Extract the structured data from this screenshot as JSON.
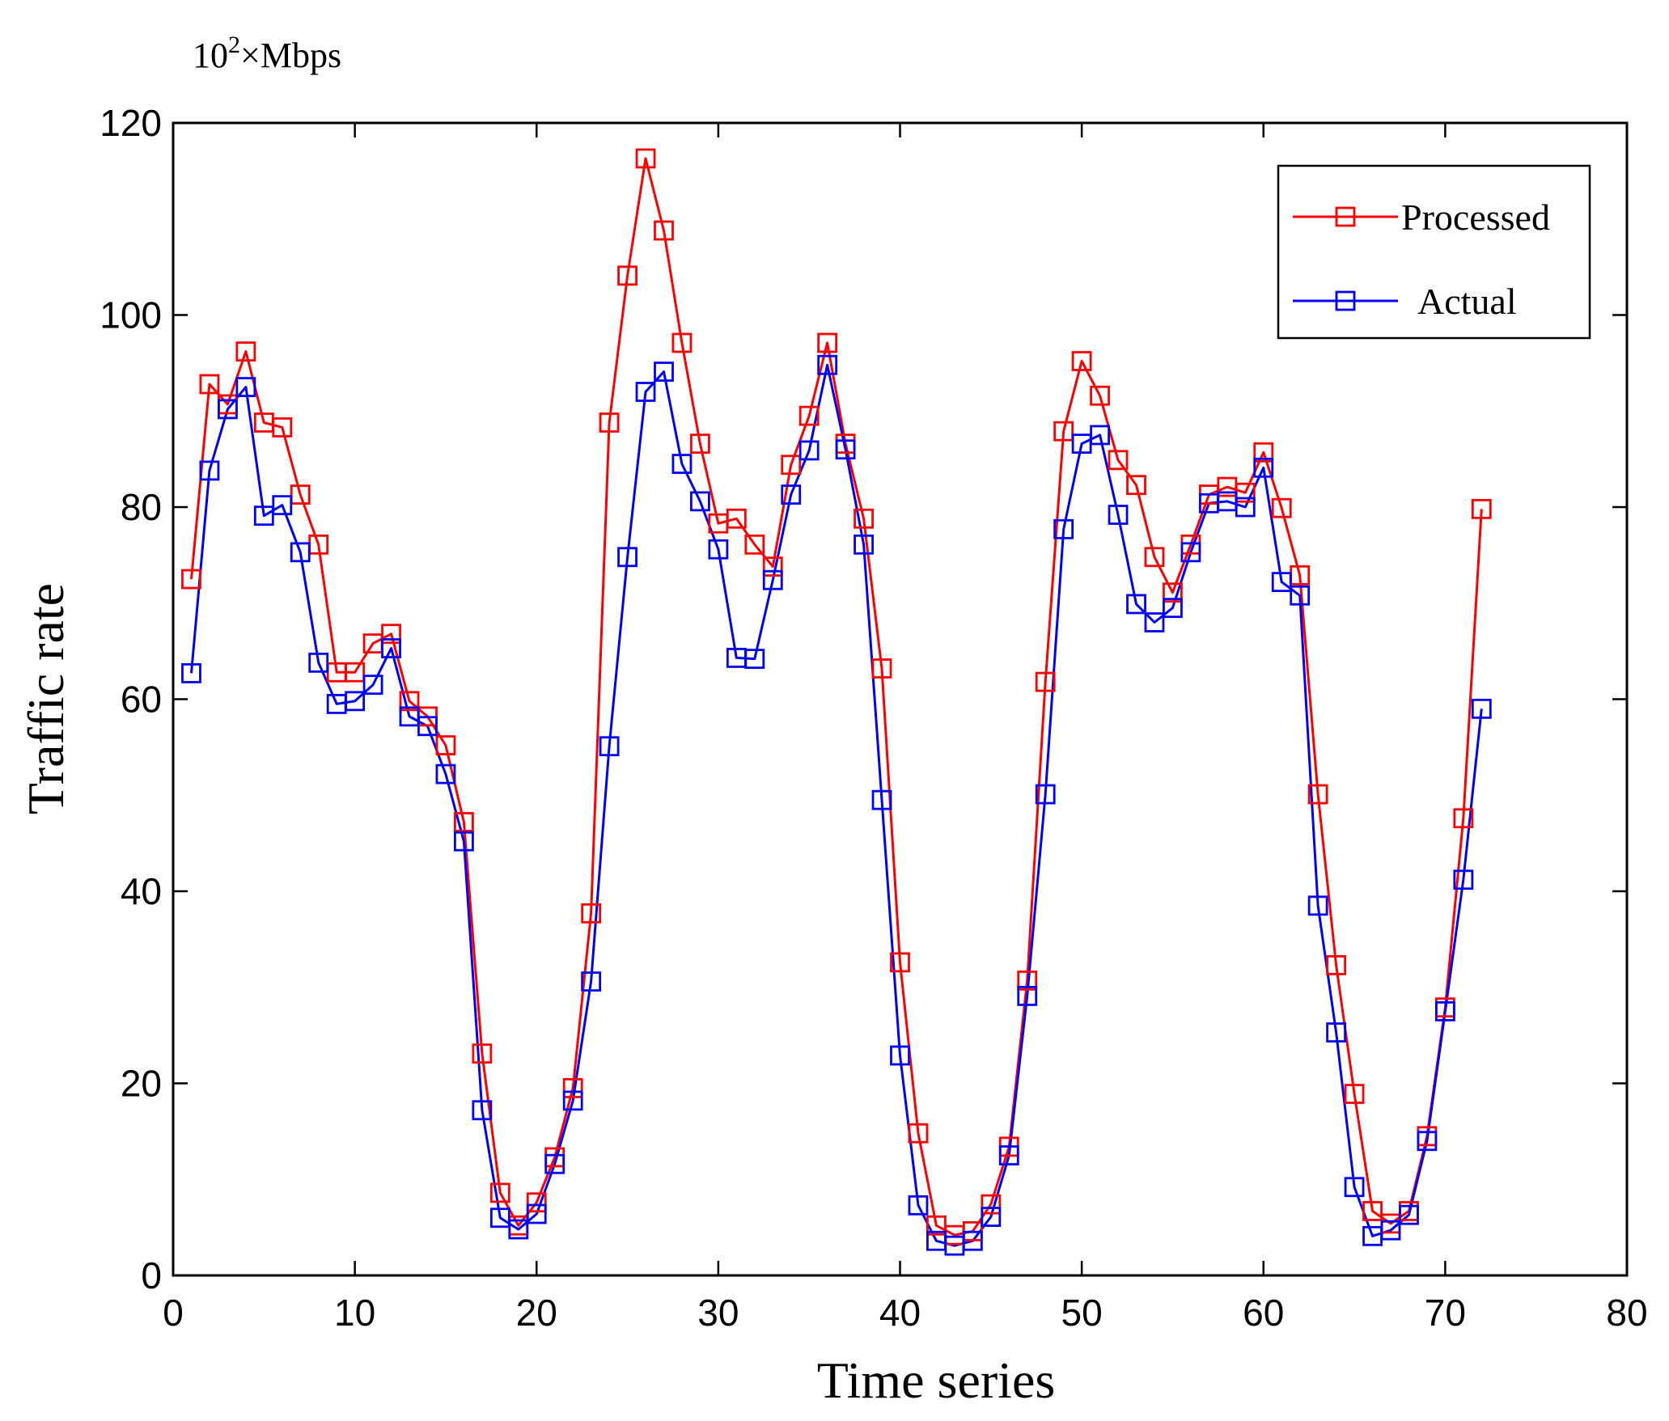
{
  "chart_data": {
    "type": "line",
    "unit_label": {
      "base": "10",
      "exponent": "2",
      "rest": "×Mbps"
    },
    "xlabel": "Time series",
    "ylabel": "Traffic rate",
    "xlim": [
      0,
      80
    ],
    "ylim": [
      0,
      120
    ],
    "xticks": [
      0,
      10,
      20,
      30,
      40,
      50,
      60,
      70,
      80
    ],
    "yticks": [
      0,
      20,
      40,
      60,
      80,
      100,
      120
    ],
    "grid": false,
    "legend_position": "top-right",
    "x": [
      1,
      2,
      3,
      4,
      5,
      6,
      7,
      8,
      9,
      10,
      11,
      12,
      13,
      14,
      15,
      16,
      17,
      18,
      19,
      20,
      21,
      22,
      23,
      24,
      25,
      26,
      27,
      28,
      29,
      30,
      31,
      32,
      33,
      34,
      35,
      36,
      37,
      38,
      39,
      40,
      41,
      42,
      43,
      44,
      45,
      46,
      47,
      48,
      49,
      50,
      51,
      52,
      53,
      54,
      55,
      56,
      57,
      58,
      59,
      60,
      61,
      62,
      63,
      64,
      65,
      66,
      67,
      68,
      69,
      70,
      71,
      72
    ],
    "series": [
      {
        "name": "Processed",
        "color": "#ff0000",
        "marker": "square",
        "values": [
          72.5,
          92.8,
          90.7,
          96.2,
          88.8,
          88.3,
          81.3,
          76.1,
          62.8,
          62.8,
          65.8,
          66.8,
          59.8,
          58.2,
          55.2,
          47.2,
          23.1,
          8.6,
          5.2,
          7.6,
          12.3,
          19.5,
          37.7,
          88.8,
          104.1,
          116.3,
          108.8,
          97.1,
          86.6,
          78.3,
          78.8,
          76.1,
          73.8,
          84.4,
          89.5,
          97.1,
          86.6,
          78.8,
          63.2,
          32.6,
          14.8,
          5.2,
          4.2,
          4.6,
          7.4,
          13.4,
          30.7,
          61.8,
          87.9,
          95.2,
          91.6,
          84.9,
          82.3,
          74.8,
          71.1,
          76.1,
          81.3,
          82.1,
          81.5,
          85.7,
          79.9,
          72.9,
          50.1,
          32.3,
          18.9,
          6.7,
          5.4,
          6.7,
          14.5,
          27.9,
          47.6,
          79.8
        ]
      },
      {
        "name": "Actual",
        "color": "#0000ff",
        "marker": "square",
        "values": [
          62.7,
          83.8,
          90.2,
          92.5,
          79.1,
          80.2,
          75.3,
          63.8,
          59.5,
          59.8,
          61.5,
          65.3,
          58.2,
          57.2,
          52.2,
          45.2,
          17.2,
          6.0,
          4.8,
          6.4,
          11.6,
          18.2,
          30.6,
          55.1,
          74.8,
          92.0,
          94.1,
          84.5,
          80.6,
          75.6,
          64.3,
          64.2,
          72.4,
          81.3,
          85.9,
          94.8,
          86.0,
          76.1,
          49.5,
          22.9,
          7.3,
          3.6,
          3.1,
          3.6,
          6.1,
          12.5,
          29.1,
          50.1,
          77.7,
          86.6,
          87.5,
          79.2,
          69.9,
          68.0,
          69.5,
          75.3,
          80.4,
          80.6,
          80.0,
          84.1,
          72.2,
          70.8,
          38.5,
          25.3,
          9.2,
          4.1,
          4.7,
          6.3,
          14.0,
          27.5,
          41.2,
          59.0
        ]
      }
    ]
  }
}
